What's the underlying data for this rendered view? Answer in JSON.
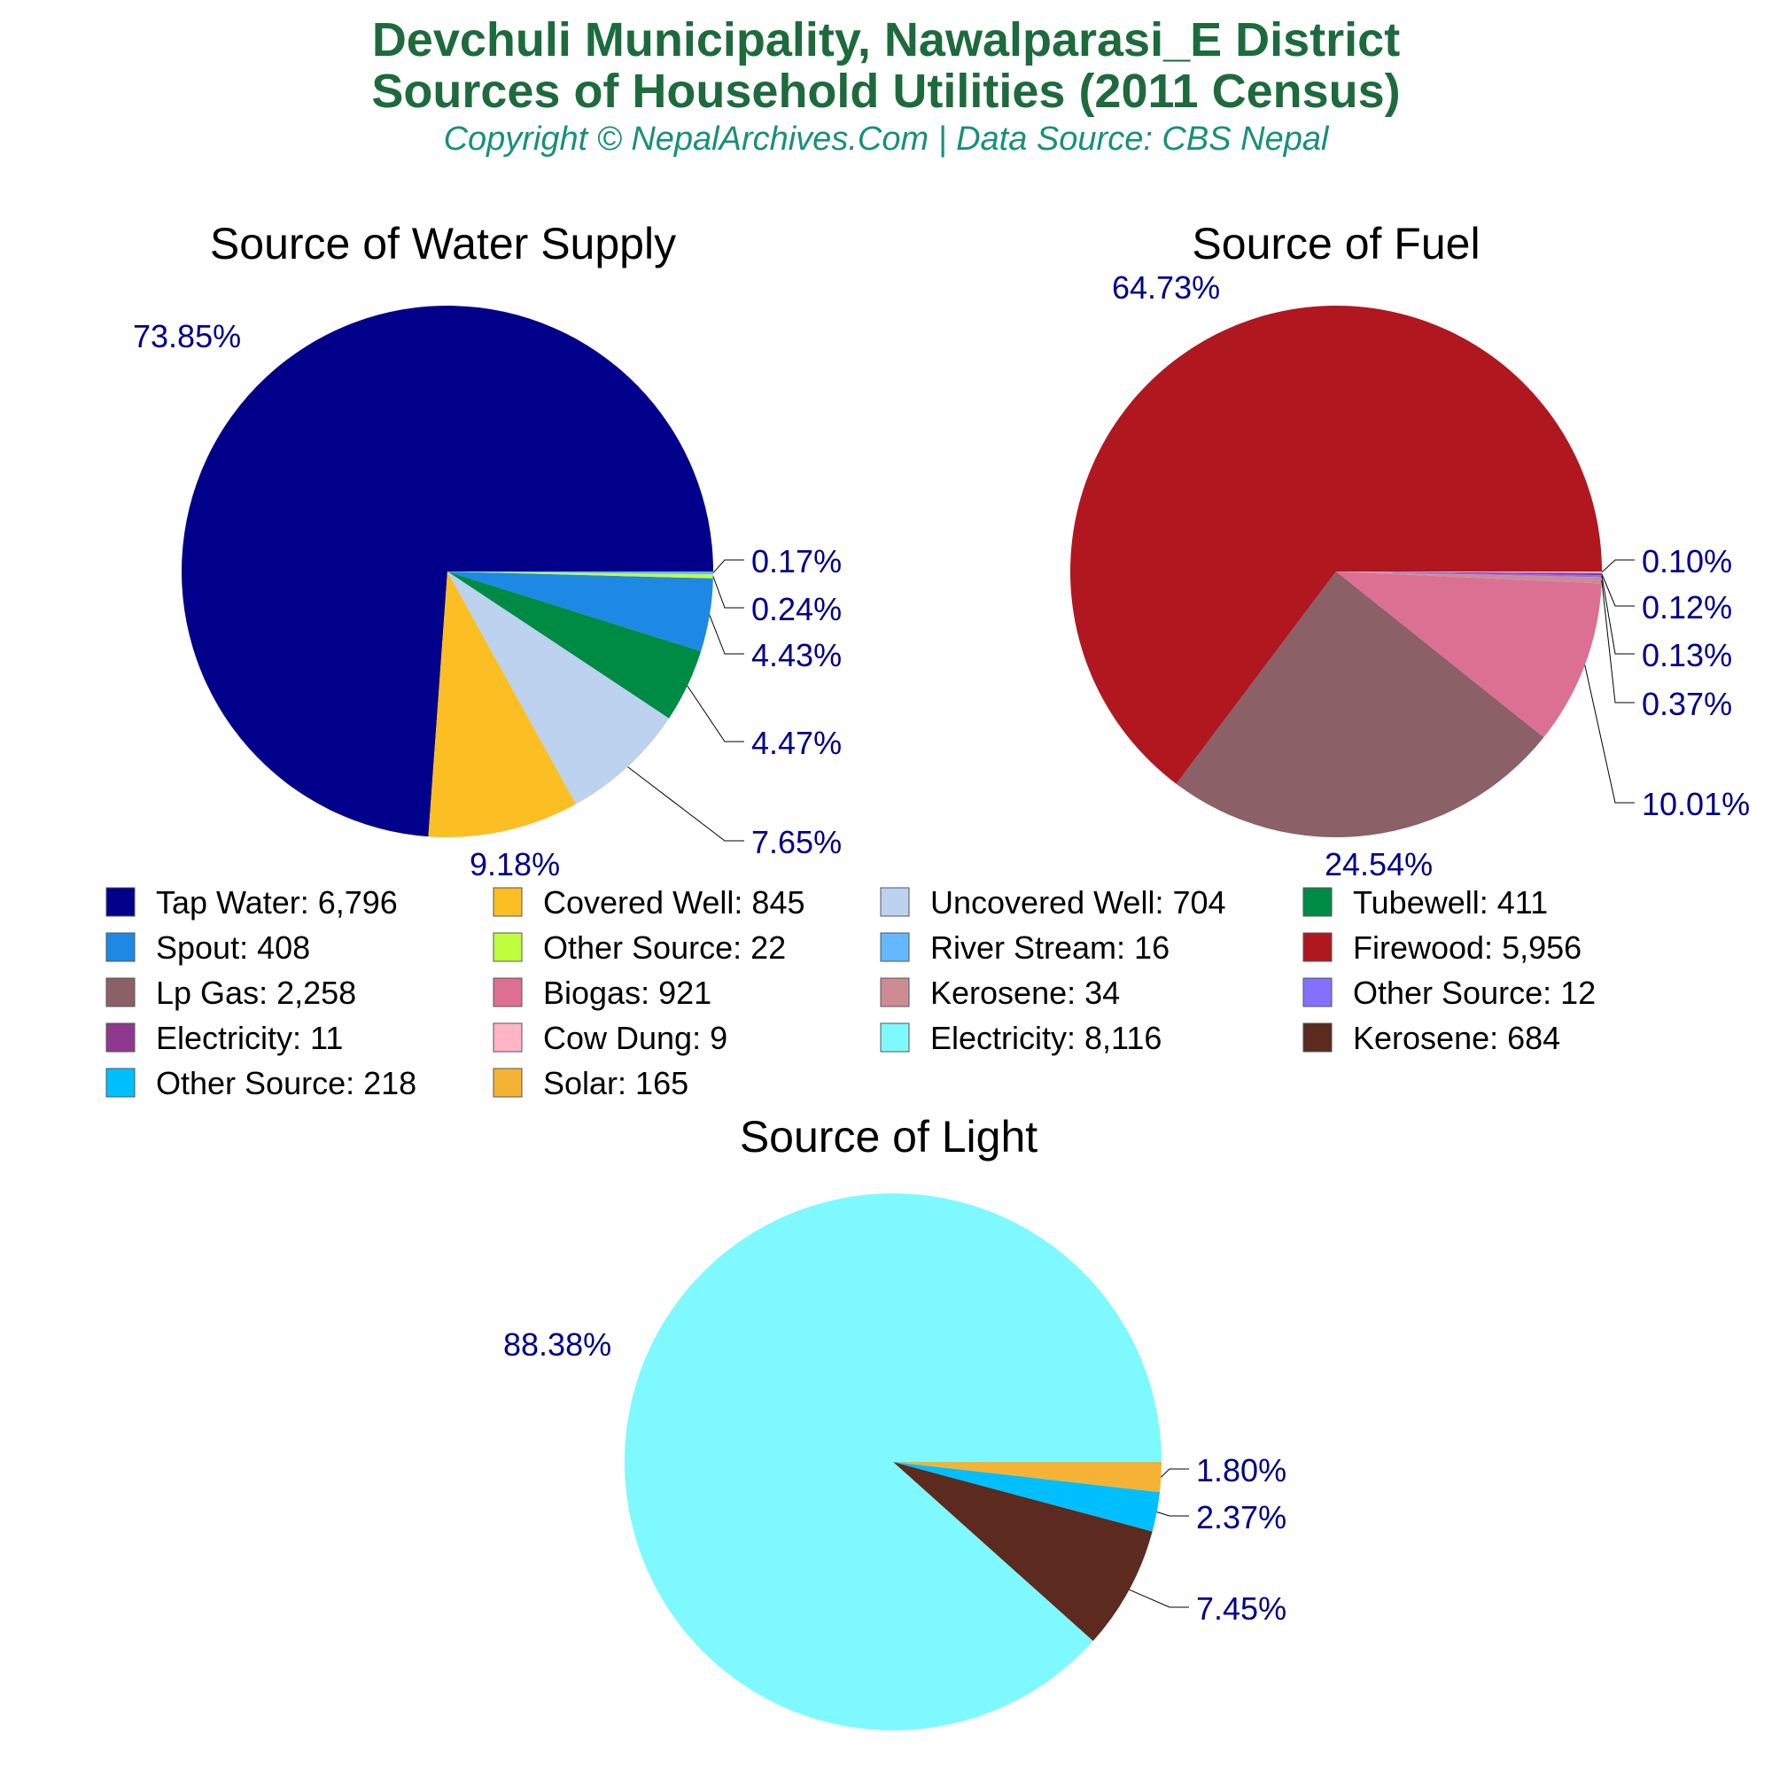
{
  "header": {
    "title_line1": "Devchuli Municipality, Nawalparasi_E District",
    "title_line2": "Sources of Household Utilities (2011 Census)",
    "subtitle": "Copyright © NepalArchives.Com | Data Source: CBS Nepal"
  },
  "chart_data": [
    {
      "type": "pie",
      "title": "Source of Water Supply",
      "slices": [
        {
          "name": "Tap Water",
          "value": 6796,
          "percent_label": "73.85%",
          "color": "#00008b"
        },
        {
          "name": "Covered Well",
          "value": 845,
          "percent_label": "9.18%",
          "color": "#fbbf24"
        },
        {
          "name": "Uncovered Well",
          "value": 704,
          "percent_label": "7.65%",
          "color": "#bcd2ee"
        },
        {
          "name": "Tubewell",
          "value": 411,
          "percent_label": "4.47%",
          "color": "#008b45"
        },
        {
          "name": "Spout",
          "value": 408,
          "percent_label": "4.43%",
          "color": "#1e88e5"
        },
        {
          "name": "Other Source",
          "value": 22,
          "percent_label": "0.24%",
          "color": "#c0ff3e"
        },
        {
          "name": "River Stream",
          "value": 16,
          "percent_label": "0.17%",
          "color": "#63b8ff"
        }
      ]
    },
    {
      "type": "pie",
      "title": "Source of Fuel",
      "slices": [
        {
          "name": "Firewood",
          "value": 5956,
          "percent_label": "64.73%",
          "color": "#b0171f"
        },
        {
          "name": "Lp Gas",
          "value": 2258,
          "percent_label": "24.54%",
          "color": "#8b6066"
        },
        {
          "name": "Biogas",
          "value": 921,
          "percent_label": "10.01%",
          "color": "#db7093"
        },
        {
          "name": "Kerosene",
          "value": 34,
          "percent_label": "0.37%",
          "color": "#cd8c95"
        },
        {
          "name": "Other Source",
          "value": 12,
          "percent_label": "0.13%",
          "color": "#8470ff"
        },
        {
          "name": "Electricity",
          "value": 11,
          "percent_label": "0.12%",
          "color": "#8e388e"
        },
        {
          "name": "Cow Dung",
          "value": 9,
          "percent_label": "0.10%",
          "color": "#ffb5c5"
        }
      ]
    },
    {
      "type": "pie",
      "title": "Source of Light",
      "slices": [
        {
          "name": "Electricity",
          "value": 8116,
          "percent_label": "88.38%",
          "color": "#7df9ff"
        },
        {
          "name": "Kerosene",
          "value": 684,
          "percent_label": "7.45%",
          "color": "#5c2a1e"
        },
        {
          "name": "Other Source",
          "value": 218,
          "percent_label": "2.37%",
          "color": "#00bfff"
        },
        {
          "name": "Solar",
          "value": 165,
          "percent_label": "1.80%",
          "color": "#f5b335"
        }
      ]
    }
  ],
  "legend": {
    "items": [
      {
        "label": "Tap Water: 6,796",
        "color": "#00008b"
      },
      {
        "label": "Covered Well: 845",
        "color": "#fbbf24"
      },
      {
        "label": "Uncovered Well: 704",
        "color": "#bcd2ee"
      },
      {
        "label": "Tubewell: 411",
        "color": "#008b45"
      },
      {
        "label": "Spout: 408",
        "color": "#1e88e5"
      },
      {
        "label": "Other Source: 22",
        "color": "#c0ff3e"
      },
      {
        "label": "River Stream: 16",
        "color": "#63b8ff"
      },
      {
        "label": "Firewood: 5,956",
        "color": "#b0171f"
      },
      {
        "label": "Lp Gas: 2,258",
        "color": "#8b6066"
      },
      {
        "label": "Biogas: 921",
        "color": "#db7093"
      },
      {
        "label": "Kerosene: 34",
        "color": "#cd8c95"
      },
      {
        "label": "Other Source: 12",
        "color": "#8470ff"
      },
      {
        "label": "Electricity: 11",
        "color": "#8e388e"
      },
      {
        "label": "Cow Dung: 9",
        "color": "#ffb5c5"
      },
      {
        "label": "Electricity: 8,116",
        "color": "#7df9ff"
      },
      {
        "label": "Kerosene: 684",
        "color": "#5c2a1e"
      },
      {
        "label": "Other Source: 218",
        "color": "#00bfff"
      },
      {
        "label": "Solar: 165",
        "color": "#f5b335"
      }
    ]
  },
  "colors": {
    "title": "#1d6b3c",
    "subtitle": "#17907a",
    "percent_label": "#00008b"
  }
}
